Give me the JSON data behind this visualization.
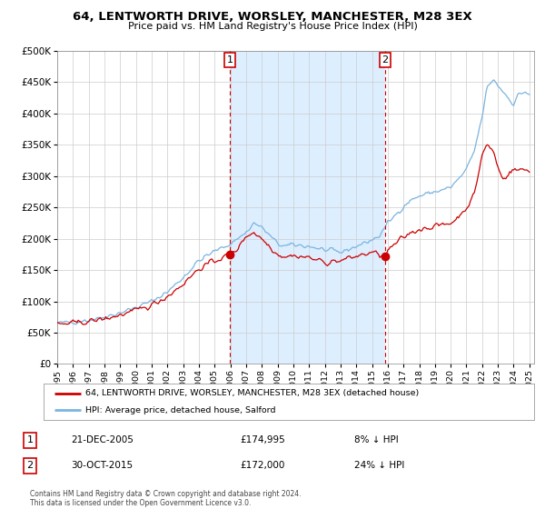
{
  "title": "64, LENTWORTH DRIVE, WORSLEY, MANCHESTER, M28 3EX",
  "subtitle": "Price paid vs. HM Land Registry's House Price Index (HPI)",
  "legend_line1": "64, LENTWORTH DRIVE, WORSLEY, MANCHESTER, M28 3EX (detached house)",
  "legend_line2": "HPI: Average price, detached house, Salford",
  "annotation1_date": "21-DEC-2005",
  "annotation1_price": "£174,995",
  "annotation1_hpi": "8% ↓ HPI",
  "annotation2_date": "30-OCT-2015",
  "annotation2_price": "£172,000",
  "annotation2_hpi": "24% ↓ HPI",
  "footer": "Contains HM Land Registry data © Crown copyright and database right 2024.\nThis data is licensed under the Open Government Licence v3.0.",
  "hpi_color": "#7ab4e0",
  "price_color": "#cc0000",
  "plot_bg_color": "#ffffff",
  "shade_color": "#ddeeff",
  "grid_color": "#cccccc",
  "ylim": [
    0,
    500000
  ],
  "yticks": [
    0,
    50000,
    100000,
    150000,
    200000,
    250000,
    300000,
    350000,
    400000,
    450000,
    500000
  ],
  "sale1_year": 2005.97,
  "sale1_price": 174995,
  "sale2_year": 2015.83,
  "sale2_price": 172000,
  "xmin": 1995.0,
  "xmax": 2025.3
}
